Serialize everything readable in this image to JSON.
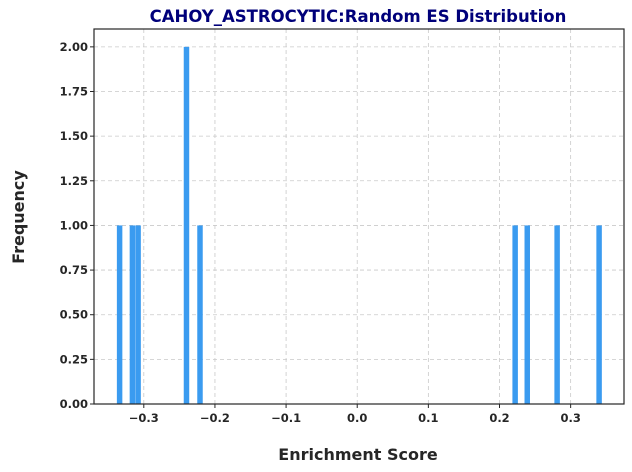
{
  "chart_data": {
    "type": "bar",
    "title": "CAHOY_ASTROCYTIC:Random ES Distribution",
    "xlabel": "Enrichment Score",
    "ylabel": "Frequency",
    "xlim": [
      -0.37,
      0.375
    ],
    "ylim": [
      0,
      2.1
    ],
    "bin_width": 0.0077,
    "x_ticks": [
      -0.3,
      -0.2,
      -0.1,
      0.0,
      0.1,
      0.2,
      0.3
    ],
    "x_tick_labels": [
      "−0.3",
      "−0.2",
      "−0.1",
      "0.0",
      "0.1",
      "0.2",
      "0.3"
    ],
    "y_ticks": [
      0,
      0.25,
      0.5,
      0.75,
      1.0,
      1.25,
      1.5,
      1.75,
      2.0
    ],
    "y_tick_labels": [
      "0.00",
      "0.25",
      "0.50",
      "0.75",
      "1.00",
      "1.25",
      "1.50",
      "1.75",
      "2.00"
    ],
    "bar_color": "#3a9bf0",
    "grid": true,
    "bars": [
      {
        "x": -0.334,
        "value": 1
      },
      {
        "x": -0.316,
        "value": 1
      },
      {
        "x": -0.308,
        "value": 1
      },
      {
        "x": -0.24,
        "value": 2
      },
      {
        "x": -0.221,
        "value": 1
      },
      {
        "x": 0.222,
        "value": 1
      },
      {
        "x": 0.239,
        "value": 1
      },
      {
        "x": 0.281,
        "value": 1
      },
      {
        "x": 0.34,
        "value": 1
      }
    ]
  }
}
